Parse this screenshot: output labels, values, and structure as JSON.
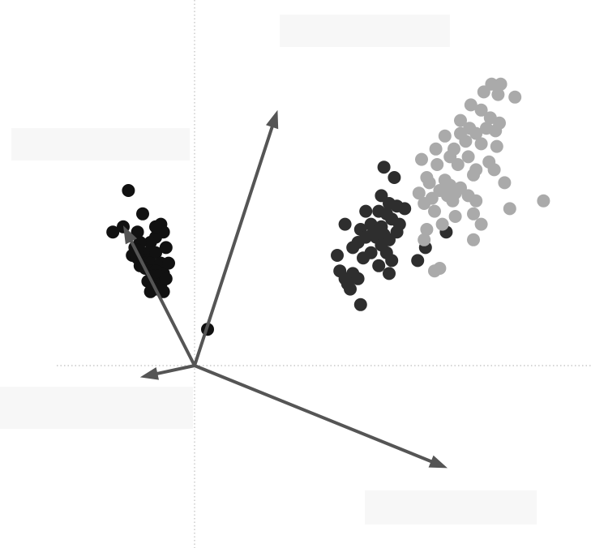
{
  "chart_data": {
    "type": "scatter",
    "title": "",
    "xlabel": "",
    "ylabel": "",
    "xlim": [
      -1.4,
      2.8
    ],
    "ylim": [
      -1.2,
      2.6
    ],
    "grid": false,
    "origin_crosshair": "dotted",
    "series": [
      {
        "color": "#111111",
        "points": [
          [
            -0.51,
            1.35
          ],
          [
            -0.63,
            1.03
          ],
          [
            -0.55,
            1.07
          ],
          [
            -0.4,
            1.17
          ],
          [
            -0.26,
            1.09
          ],
          [
            -0.24,
            1.03
          ],
          [
            -0.44,
            1.03
          ],
          [
            -0.3,
            0.99
          ],
          [
            -0.34,
            0.95
          ],
          [
            -0.22,
            0.91
          ],
          [
            -0.46,
            0.91
          ],
          [
            -0.4,
            0.87
          ],
          [
            -0.36,
            0.87
          ],
          [
            -0.3,
            0.87
          ],
          [
            -0.48,
            0.85
          ],
          [
            -0.44,
            0.83
          ],
          [
            -0.4,
            0.81
          ],
          [
            -0.38,
            0.79
          ],
          [
            -0.34,
            0.79
          ],
          [
            -0.26,
            0.79
          ],
          [
            -0.42,
            0.77
          ],
          [
            -0.38,
            0.75
          ],
          [
            -0.34,
            0.73
          ],
          [
            -0.3,
            0.73
          ],
          [
            -0.24,
            0.71
          ],
          [
            -0.32,
            0.69
          ],
          [
            -0.28,
            0.69
          ],
          [
            -0.36,
            0.65
          ],
          [
            -0.26,
            0.63
          ],
          [
            -0.32,
            0.61
          ],
          [
            -0.3,
            0.59
          ],
          [
            -0.26,
            0.59
          ],
          [
            -0.34,
            0.57
          ],
          [
            -0.24,
            0.57
          ],
          [
            -0.2,
            0.79
          ],
          [
            -0.3,
            1.07
          ],
          [
            -0.42,
            0.95
          ],
          [
            -0.44,
            0.89
          ],
          [
            -0.22,
            0.67
          ],
          [
            0.1,
            0.28
          ]
        ]
      },
      {
        "color": "#2e2e2e",
        "points": [
          [
            1.46,
            1.53
          ],
          [
            1.54,
            1.45
          ],
          [
            1.44,
            1.31
          ],
          [
            1.5,
            1.25
          ],
          [
            1.56,
            1.23
          ],
          [
            1.62,
            1.21
          ],
          [
            1.32,
            1.19
          ],
          [
            1.42,
            1.19
          ],
          [
            1.48,
            1.17
          ],
          [
            1.52,
            1.13
          ],
          [
            1.58,
            1.09
          ],
          [
            1.16,
            1.09
          ],
          [
            1.36,
            1.09
          ],
          [
            1.44,
            1.07
          ],
          [
            1.28,
            1.05
          ],
          [
            1.38,
            1.03
          ],
          [
            1.46,
            1.01
          ],
          [
            1.56,
            1.03
          ],
          [
            1.32,
            0.99
          ],
          [
            1.4,
            0.99
          ],
          [
            1.5,
            0.97
          ],
          [
            1.26,
            0.95
          ],
          [
            1.44,
            0.93
          ],
          [
            1.78,
            0.91
          ],
          [
            1.22,
            0.91
          ],
          [
            1.36,
            0.87
          ],
          [
            1.48,
            0.87
          ],
          [
            1.1,
            0.85
          ],
          [
            1.3,
            0.83
          ],
          [
            1.52,
            0.81
          ],
          [
            1.72,
            0.81
          ],
          [
            1.42,
            0.77
          ],
          [
            1.12,
            0.73
          ],
          [
            1.22,
            0.71
          ],
          [
            1.5,
            0.71
          ],
          [
            1.16,
            0.67
          ],
          [
            1.26,
            0.67
          ],
          [
            1.18,
            0.63
          ],
          [
            1.2,
            0.59
          ],
          [
            1.28,
            0.47
          ],
          [
            1.94,
            1.03
          ]
        ]
      },
      {
        "color": "#aaaaaa",
        "points": [
          [
            2.29,
            2.17
          ],
          [
            2.36,
            2.17
          ],
          [
            2.23,
            2.11
          ],
          [
            2.34,
            2.09
          ],
          [
            2.47,
            2.07
          ],
          [
            2.13,
            2.01
          ],
          [
            2.21,
            1.97
          ],
          [
            2.28,
            1.91
          ],
          [
            2.05,
            1.89
          ],
          [
            2.35,
            1.87
          ],
          [
            2.25,
            1.83
          ],
          [
            2.12,
            1.83
          ],
          [
            2.32,
            1.81
          ],
          [
            2.17,
            1.79
          ],
          [
            2.05,
            1.79
          ],
          [
            1.93,
            1.77
          ],
          [
            2.09,
            1.73
          ],
          [
            2.21,
            1.71
          ],
          [
            2.33,
            1.69
          ],
          [
            1.86,
            1.67
          ],
          [
            2.0,
            1.67
          ],
          [
            1.97,
            1.61
          ],
          [
            2.11,
            1.61
          ],
          [
            2.27,
            1.57
          ],
          [
            1.75,
            1.59
          ],
          [
            1.87,
            1.55
          ],
          [
            2.03,
            1.55
          ],
          [
            2.17,
            1.51
          ],
          [
            2.31,
            1.51
          ],
          [
            1.79,
            1.45
          ],
          [
            1.93,
            1.43
          ],
          [
            2.15,
            1.47
          ],
          [
            1.81,
            1.41
          ],
          [
            1.97,
            1.39
          ],
          [
            2.05,
            1.37
          ],
          [
            2.39,
            1.41
          ],
          [
            1.89,
            1.35
          ],
          [
            2.01,
            1.33
          ],
          [
            1.95,
            1.31
          ],
          [
            2.11,
            1.31
          ],
          [
            1.73,
            1.33
          ],
          [
            1.83,
            1.29
          ],
          [
            1.99,
            1.27
          ],
          [
            2.17,
            1.27
          ],
          [
            1.77,
            1.25
          ],
          [
            2.69,
            1.27
          ],
          [
            2.43,
            1.21
          ],
          [
            1.85,
            1.19
          ],
          [
            2.15,
            1.17
          ],
          [
            2.01,
            1.15
          ],
          [
            1.91,
            1.09
          ],
          [
            2.21,
            1.09
          ],
          [
            1.79,
            1.05
          ],
          [
            2.15,
            0.97
          ],
          [
            1.77,
            0.97
          ],
          [
            1.89,
            0.75
          ],
          [
            1.85,
            0.73
          ]
        ]
      }
    ],
    "arrows": [
      {
        "x": 0.64,
        "y": 1.97
      },
      {
        "x": -0.55,
        "y": 1.08
      },
      {
        "x": -0.42,
        "y": -0.09
      },
      {
        "x": 1.95,
        "y": -0.79
      }
    ],
    "arrow_color": "#555555"
  }
}
